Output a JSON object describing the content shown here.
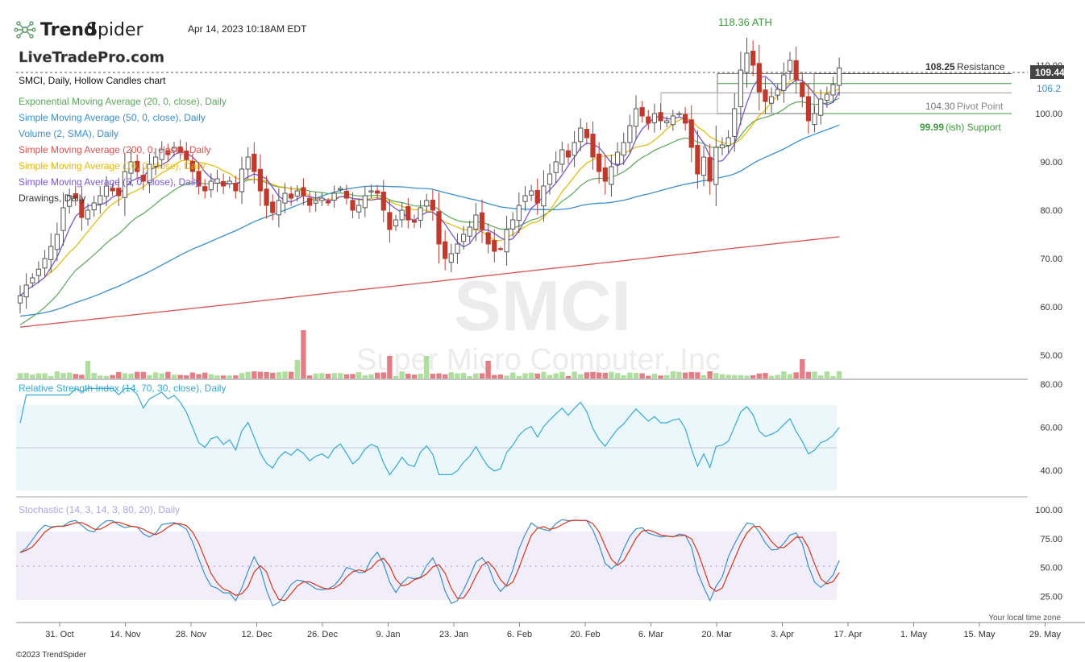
{
  "header": {
    "brand_bold": "Trend",
    "brand_light": "Spider",
    "timestamp": "Apr 14, 2023 10:18AM EDT",
    "watermark_logo": "LiveTradePro.com",
    "chart_title": "SMCI, Daily, Hollow Candles chart"
  },
  "legend": [
    {
      "label": "Exponential Moving Average (20, 0, close), Daily",
      "color": "#5aa85a"
    },
    {
      "label": "Simple Moving Average (50, 0, close), Daily",
      "color": "#3a8fd0"
    },
    {
      "label": "Volume (2, SMA), Daily",
      "color": "#3a8fd0"
    },
    {
      "label": "Simple Moving Average (200, 0, close), Daily",
      "color": "#d9534f"
    },
    {
      "label": "Simple Moving Average (10, 0, close), Daily",
      "color": "#e6b800"
    },
    {
      "label": "Simple Moving Average (5, 0, close), Daily",
      "color": "#7b55d6"
    },
    {
      "label": "Drawings, Daily",
      "color": "#333333"
    }
  ],
  "watermark": {
    "symbol": "SMCI",
    "company": "Super Micro Computer, Inc"
  },
  "annotations": {
    "ath": "118.36 ATH",
    "resistance_value": "108.25",
    "resistance_label": "Resistance",
    "pivot_value": "104.30",
    "pivot_label": "Pivot Point",
    "support_value": "99.99",
    "support_label": "(ish) Support"
  },
  "price_badges": {
    "last": "109.44",
    "second": "106.2"
  },
  "rsi_title": "Relative Strength Index (14, 70, 30, close), Daily",
  "stoch_title": "Stochastic (14, 3, 14, 3, 80, 20), Daily",
  "time_zone_note": "Your local time zone",
  "copyright": "©2023 TrendSpider",
  "colors": {
    "up": "#5cb85c",
    "down": "#c0392b",
    "rsi": "#35a9d6",
    "stoch_k": "#3a8fd0",
    "stoch_d": "#d9331a"
  },
  "chart_data": {
    "type": "line",
    "price_axis": {
      "ticks": [
        "110.00",
        "100.00",
        "90.00",
        "80.00",
        "70.00",
        "60.00",
        "50.00"
      ],
      "ylim": [
        47,
        115
      ]
    },
    "rsi_axis": {
      "ticks": [
        "80.00",
        "60.00",
        "40.00"
      ],
      "ylim": [
        25,
        85
      ]
    },
    "stoch_axis": {
      "ticks": [
        "100.00",
        "75.00",
        "50.00",
        "25.00"
      ],
      "ylim": [
        5,
        102
      ]
    },
    "x_ticks": [
      "31. Oct",
      "14. Nov",
      "28. Nov",
      "12. Dec",
      "26. Dec",
      "9. Jan",
      "23. Jan",
      "6. Feb",
      "20. Feb",
      "6. Mar",
      "20. Mar",
      "3. Apr",
      "17. Apr",
      "1. May",
      "15. May",
      "29. May"
    ],
    "levels": {
      "resistance": 108.25,
      "pivot": 104.3,
      "support": 99.99,
      "ath": 118.36
    },
    "series": [
      {
        "name": "Close",
        "values": [
          62.3,
          64.5,
          66.0,
          67.8,
          70.0,
          72.5,
          75.0,
          80.5,
          83.0,
          82.5,
          78.5,
          80.0,
          81.5,
          83.0,
          85.0,
          84.0,
          83.0,
          88.0,
          90.0,
          88.0,
          86.0,
          89.5,
          91.0,
          92.5,
          91.5,
          93.0,
          92.0,
          90.5,
          88.0,
          85.0,
          84.0,
          86.0,
          86.5,
          85.0,
          86.0,
          84.0,
          88.5,
          91.0,
          88.0,
          84.0,
          81.0,
          79.5,
          82.0,
          83.5,
          82.5,
          84.0,
          83.0,
          81.0,
          82.0,
          82.5,
          81.5,
          83.5,
          84.5,
          82.5,
          80.0,
          81.0,
          83.0,
          84.0,
          83.5,
          80.0,
          76.0,
          78.0,
          80.0,
          78.0,
          77.5,
          80.5,
          82.0,
          80.0,
          73.0,
          70.0,
          71.0,
          73.0,
          75.0,
          76.5,
          79.0,
          76.0,
          73.0,
          71.5,
          72.0,
          76.0,
          78.0,
          81.0,
          83.0,
          84.0,
          81.5,
          85.0,
          87.5,
          90.0,
          92.5,
          91.0,
          94.0,
          97.0,
          95.0,
          91.0,
          88.0,
          86.0,
          89.0,
          92.0,
          94.0,
          97.5,
          101.0,
          99.5,
          98.0,
          100.0,
          98.5,
          98.5,
          99.5,
          100.0,
          98.0,
          93.0,
          87.5,
          91.0,
          86.0,
          93.0,
          93.5,
          95.0,
          101.0,
          109.0,
          112.5,
          110.0,
          104.5,
          102.5,
          103.5,
          105.0,
          108.0,
          111.0,
          107.0,
          103.5,
          98.5,
          100.0,
          103.0,
          104.0,
          106.0,
          109.44
        ]
      },
      {
        "name": "SMA 200",
        "values": [
          55.8,
          58.1,
          60.4,
          62.8,
          65.1,
          67.5,
          69.8,
          72.2,
          74.5
        ]
      }
    ]
  }
}
